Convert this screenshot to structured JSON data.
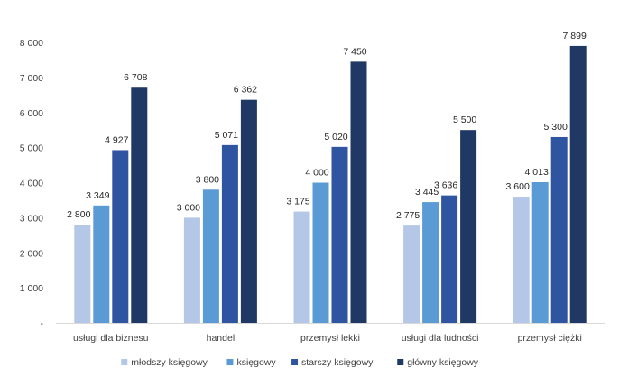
{
  "chart_data": {
    "type": "bar",
    "title": "",
    "xlabel": "",
    "ylabel": "",
    "ylim": [
      0,
      8000
    ],
    "yticks": [
      0,
      1000,
      2000,
      3000,
      4000,
      5000,
      6000,
      7000,
      8000
    ],
    "ytick_labels": [
      "-",
      "1 000",
      "2 000",
      "3 000",
      "4 000",
      "5 000",
      "6 000",
      "7 000",
      "8 000"
    ],
    "categories": [
      "usługi dla biznesu",
      "handel",
      "przemysł lekki",
      "usługi dla ludności",
      "przemysł ciężki"
    ],
    "series": [
      {
        "name": "młodszy księgowy",
        "color": "#b4c7e7",
        "values": [
          2800,
          3000,
          3175,
          2775,
          3600
        ],
        "labels": [
          "2 800",
          "3 000",
          "3 175",
          "2 775",
          "3 600"
        ]
      },
      {
        "name": "księgowy",
        "color": "#5b9bd5",
        "values": [
          3349,
          3800,
          4000,
          3445,
          4013
        ],
        "labels": [
          "3 349",
          "3 800",
          "4 000",
          "3 445",
          "4 013"
        ]
      },
      {
        "name": "starszy księgowy",
        "color": "#2f54a0",
        "values": [
          4927,
          5071,
          5020,
          3636,
          5300
        ],
        "labels": [
          "4 927",
          "5 071",
          "5 020",
          "3 636",
          "5 300"
        ]
      },
      {
        "name": "główny księgowy",
        "color": "#203864",
        "values": [
          6708,
          6362,
          7450,
          5500,
          7899
        ],
        "labels": [
          "6 708",
          "6 362",
          "7 450",
          "5 500",
          "7 899"
        ]
      }
    ],
    "legend_position": "bottom",
    "grid": false
  }
}
